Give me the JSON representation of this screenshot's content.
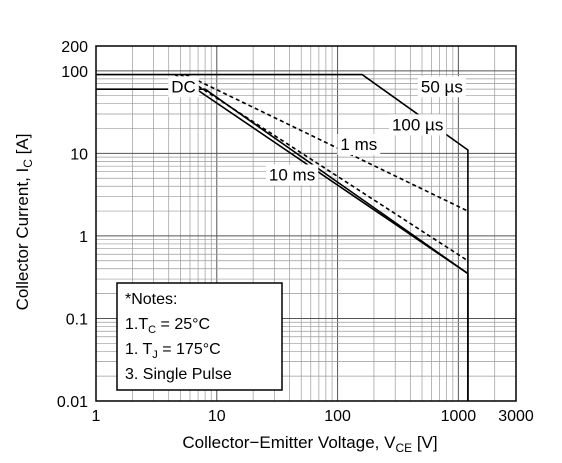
{
  "chart_data": {
    "type": "line",
    "xscale": "log",
    "yscale": "log",
    "xlim": [
      1,
      3000
    ],
    "ylim": [
      0.01,
      200
    ],
    "x_ticks": [
      {
        "value": 1,
        "label": "1"
      },
      {
        "value": 10,
        "label": "10"
      },
      {
        "value": 100,
        "label": "100"
      },
      {
        "value": 1000,
        "label": "1000"
      },
      {
        "value": 3000,
        "label": "3000"
      }
    ],
    "y_ticks": [
      {
        "value": 0.01,
        "label": "0.01"
      },
      {
        "value": 0.1,
        "label": "0.1"
      },
      {
        "value": 1,
        "label": "1"
      },
      {
        "value": 10,
        "label": "10"
      },
      {
        "value": 100,
        "label": "100"
      },
      {
        "value": 200,
        "label": "200"
      }
    ],
    "xlabel": {
      "main": "Collector−Emitter Voltage, V",
      "sub": "CE",
      "unit": " [V]"
    },
    "ylabel": {
      "main": "Collector Current, I",
      "sub": "C",
      "unit": " [A]"
    },
    "grid": true,
    "series": [
      {
        "name": "50 µs",
        "style": "solid",
        "x": [
          1,
          160,
          1200,
          1200
        ],
        "y": [
          90,
          90,
          11,
          0.01
        ]
      },
      {
        "name": "100 µs",
        "style": "dashed",
        "x": [
          5.5,
          1200
        ],
        "y": [
          90,
          2
        ]
      },
      {
        "name": "1 ms",
        "style": "dashed",
        "x": [
          5,
          1200
        ],
        "y": [
          90,
          0.5
        ]
      },
      {
        "name": "10 ms",
        "style": "solid",
        "x": [
          4.5,
          1200
        ],
        "y": [
          90,
          0.35
        ]
      },
      {
        "name": "DC",
        "style": "solid",
        "x": [
          1,
          8,
          1200,
          1200
        ],
        "y": [
          60,
          60,
          0.35,
          0.01
        ]
      }
    ],
    "annotations": [
      {
        "text": "DC",
        "x": 5.3,
        "y": 55
      },
      {
        "text": "50 µs",
        "x": 730,
        "y": 55
      },
      {
        "text": "100 µs",
        "x": 460,
        "y": 19
      },
      {
        "text": "1 ms",
        "x": 150,
        "y": 11
      },
      {
        "text": "10 ms",
        "x": 42,
        "y": 4.7
      }
    ],
    "notes": {
      "title": "*Notes:",
      "line1": {
        "pre": "1.T",
        "sub": "C",
        "post": " = 25°C"
      },
      "line2": {
        "pre": "1. T",
        "sub": "J",
        "post": " =  175°C"
      },
      "line3": "3. Single Pulse"
    }
  }
}
